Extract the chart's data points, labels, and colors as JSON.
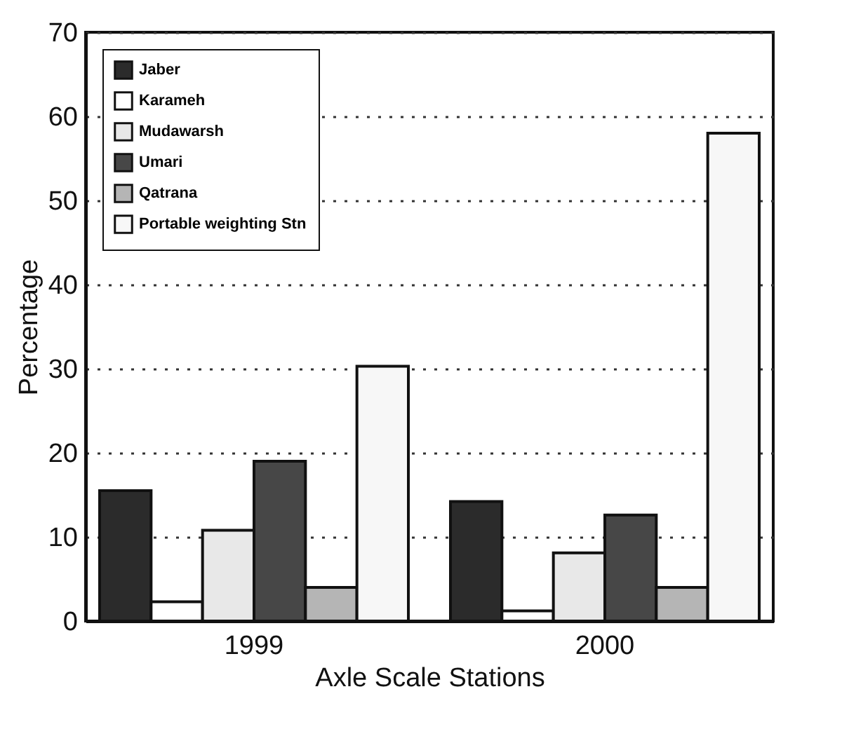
{
  "chart_data": {
    "type": "bar",
    "xlabel": "Axle Scale Stations",
    "ylabel": "Percentage",
    "categories": [
      "1999",
      "2000"
    ],
    "series": [
      {
        "name": "Jaber",
        "color": "#2b2b2b",
        "values": [
          15.5,
          14.2
        ]
      },
      {
        "name": "Karameh",
        "color": "#ffffff",
        "values": [
          2.3,
          1.2
        ]
      },
      {
        "name": "Mudawarsh",
        "color": "#e8e8e8",
        "values": [
          10.8,
          8.1
        ]
      },
      {
        "name": "Umari",
        "color": "#474747",
        "values": [
          19,
          12.6
        ]
      },
      {
        "name": "Qatrana",
        "color": "#b5b5b5",
        "values": [
          4,
          4
        ]
      },
      {
        "name": "Portable weighting Stn",
        "color": "#f7f7f7",
        "values": [
          30.3,
          58
        ]
      }
    ],
    "ylim": [
      0,
      70
    ],
    "yticks": [
      0,
      10,
      20,
      30,
      40,
      50,
      60,
      70
    ],
    "grid": "y",
    "legend": "top left"
  }
}
